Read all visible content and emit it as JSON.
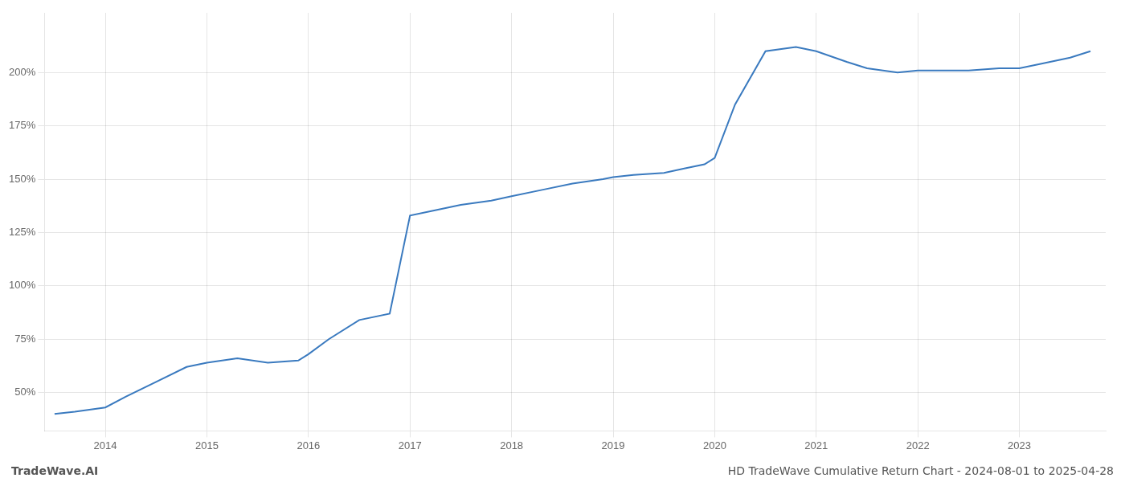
{
  "chart_data": {
    "type": "line",
    "x": [
      2013.5,
      2013.7,
      2014.0,
      2014.2,
      2014.5,
      2014.8,
      2015.0,
      2015.3,
      2015.6,
      2015.9,
      2016.0,
      2016.2,
      2016.5,
      2016.8,
      2017.0,
      2017.2,
      2017.5,
      2017.8,
      2018.0,
      2018.3,
      2018.6,
      2018.9,
      2019.0,
      2019.2,
      2019.5,
      2019.7,
      2019.9,
      2020.0,
      2020.2,
      2020.5,
      2020.8,
      2021.0,
      2021.3,
      2021.5,
      2021.8,
      2022.0,
      2022.2,
      2022.5,
      2022.8,
      2023.0,
      2023.2,
      2023.5,
      2023.7
    ],
    "values": [
      40,
      41,
      43,
      48,
      55,
      62,
      64,
      66,
      64,
      65,
      68,
      75,
      84,
      87,
      133,
      135,
      138,
      140,
      142,
      145,
      148,
      150,
      151,
      152,
      153,
      155,
      157,
      160,
      185,
      210,
      212,
      210,
      205,
      202,
      200,
      201,
      201,
      201,
      202,
      202,
      204,
      207,
      210
    ],
    "color": "#3a7abf",
    "xlim": [
      2013.4,
      2023.85
    ],
    "xticks": [
      2014,
      2015,
      2016,
      2017,
      2018,
      2019,
      2020,
      2021,
      2022,
      2023
    ],
    "ylim": [
      32,
      228
    ],
    "yticks": [
      {
        "value": 50,
        "label": "50%"
      },
      {
        "value": 75,
        "label": "75%"
      },
      {
        "value": 100,
        "label": "100%"
      },
      {
        "value": 125,
        "label": "125%"
      },
      {
        "value": 150,
        "label": "150%"
      },
      {
        "value": 175,
        "label": "175%"
      },
      {
        "value": 200,
        "label": "200%"
      }
    ],
    "grid": true,
    "annotations": [
      "TradeWave.AI",
      "HD TradeWave Cumulative Return Chart - 2024-08-01 to 2025-04-28"
    ]
  }
}
